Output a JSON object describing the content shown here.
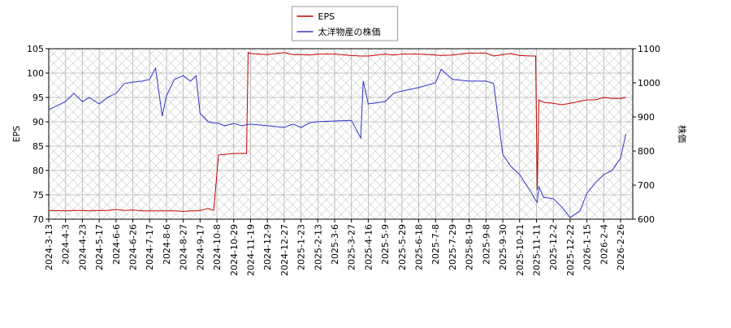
{
  "chart_data": {
    "type": "line",
    "x": [
      "2024-3-13",
      "2024-4-3",
      "2024-4-13",
      "2024-4-23",
      "2024-5-3",
      "2024-5-17",
      "2024-5-27",
      "2024-6-6",
      "2024-6-16",
      "2024-6-26",
      "2024-7-8",
      "2024-7-17",
      "2024-7-24",
      "2024-8-1",
      "2024-8-6",
      "2024-8-16",
      "2024-8-27",
      "2024-9-5",
      "2024-9-12",
      "2024-9-17",
      "2024-9-27",
      "2024-10-4",
      "2024-10-10",
      "2024-10-18",
      "2024-10-29",
      "2024-11-8",
      "2024-11-14",
      "2024-11-16",
      "2024-11-19",
      "2024-12-9",
      "2024-12-27",
      "2025-1-10",
      "2025-1-23",
      "2025-2-3",
      "2025-2-13",
      "2025-3-6",
      "2025-3-27",
      "2025-4-7",
      "2025-4-10",
      "2025-4-16",
      "2025-5-9",
      "2025-5-19",
      "2025-5-29",
      "2025-6-18",
      "2025-7-8",
      "2025-7-15",
      "2025-7-29",
      "2025-8-19",
      "2025-9-8",
      "2025-9-18",
      "2025-9-30",
      "2025-10-10",
      "2025-10-21",
      "2025-11-5",
      "2025-11-10",
      "2025-11-12",
      "2025-11-14",
      "2025-11-20",
      "2025-12-2",
      "2025-12-12",
      "2025-12-22",
      "2026-1-5",
      "2026-1-15",
      "2026-1-25",
      "2026-2-4",
      "2026-2-15",
      "2026-2-26",
      "2026-3-5"
    ],
    "series": [
      {
        "name": "EPS",
        "color": "#cc0000",
        "axis": "y",
        "values": [
          71.8,
          71.7,
          71.8,
          71.8,
          71.7,
          71.8,
          71.8,
          72,
          71.8,
          71.9,
          71.7,
          71.7,
          71.7,
          71.7,
          71.7,
          71.7,
          71.6,
          71.7,
          71.7,
          71.8,
          72.2,
          71.8,
          83.2,
          83.3,
          83.5,
          83.5,
          83.5,
          104.2,
          104,
          103.8,
          104.2,
          103.8,
          103.8,
          103.7,
          103.9,
          103.9,
          103.6,
          103.5,
          103.5,
          103.5,
          103.9,
          103.7,
          103.9,
          103.9,
          103.7,
          103.6,
          103.7,
          104.1,
          104.1,
          103.5,
          103.8,
          104,
          103.6,
          103.5,
          103.5,
          76,
          94.5,
          94,
          93.8,
          93.5,
          93.8,
          94.2,
          94.5,
          94.5,
          95,
          94.8,
          94.8,
          95
        ]
      },
      {
        "name": "太洋物産の株価",
        "color": "#3333cc",
        "axis": "y2",
        "values": [
          921,
          945,
          969,
          945,
          957,
          938,
          957,
          969,
          998,
          1002,
          1005,
          1010,
          1043,
          902,
          962,
          1010,
          1021,
          1005,
          1021,
          910,
          886,
          882,
          881,
          874,
          881,
          874,
          877,
          878,
          879,
          874,
          869,
          879,
          869,
          883,
          886,
          888,
          890,
          838,
          1005,
          938,
          945,
          969,
          976,
          986,
          1000,
          1040,
          1010,
          1005,
          1005,
          998,
          790,
          755,
          731,
          676,
          655,
          650,
          695,
          664,
          660,
          636,
          605,
          624,
          676,
          707,
          731,
          743,
          779,
          850
        ]
      }
    ],
    "xlim": [
      "2024-3-13",
      "2026-3-14"
    ],
    "xticks": [
      "2024-3-13",
      "2024-4-3",
      "2024-4-23",
      "2024-5-17",
      "2024-6-6",
      "2024-6-26",
      "2024-7-17",
      "2024-8-6",
      "2024-8-27",
      "2024-9-17",
      "2024-10-8",
      "2024-10-29",
      "2024-11-19",
      "2024-12-9",
      "2024-12-27",
      "2025-1-23",
      "2025-2-13",
      "2025-3-6",
      "2025-3-27",
      "2025-4-16",
      "2025-5-9",
      "2025-5-29",
      "2025-6-18",
      "2025-7-8",
      "2025-7-29",
      "2025-8-19",
      "2025-9-8",
      "2025-9-30",
      "2025-10-21",
      "2025-11-11",
      "2025-12-2",
      "2025-12-22",
      "2026-1-15",
      "2026-2-4",
      "2026-2-26"
    ],
    "ylim": [
      70,
      105
    ],
    "yticks": [
      70,
      75,
      80,
      85,
      90,
      95,
      100,
      105
    ],
    "y2lim": [
      600,
      1100
    ],
    "y2ticks": [
      600,
      700,
      800,
      900,
      1000,
      1100
    ],
    "ylabel": "EPS",
    "y2label": "株価",
    "grid": true,
    "legend": "top"
  }
}
